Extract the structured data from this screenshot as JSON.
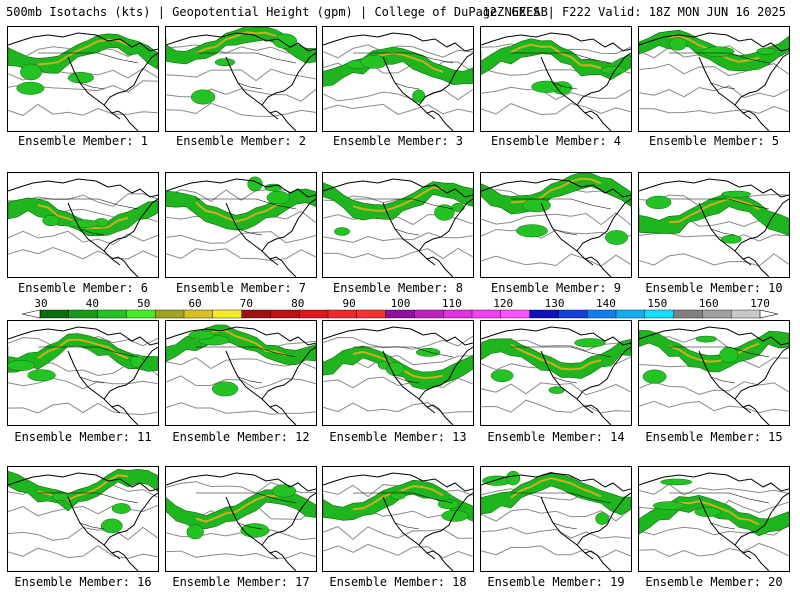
{
  "header": {
    "title_left": "500mb Isotachs (kts) | Geopotential Height (gpm) | College of DuPage NEXLAB",
    "title_right": "12Z GEFS | F222 Valid: 18Z MON JUN 16 2025"
  },
  "panels": [
    {
      "label": "Ensemble Member: 1"
    },
    {
      "label": "Ensemble Member: 2"
    },
    {
      "label": "Ensemble Member: 3"
    },
    {
      "label": "Ensemble Member: 4"
    },
    {
      "label": "Ensemble Member: 5"
    },
    {
      "label": "Ensemble Member: 6"
    },
    {
      "label": "Ensemble Member: 7"
    },
    {
      "label": "Ensemble Member: 8"
    },
    {
      "label": "Ensemble Member: 9"
    },
    {
      "label": "Ensemble Member: 10"
    },
    {
      "label": "Ensemble Member: 11"
    },
    {
      "label": "Ensemble Member: 12"
    },
    {
      "label": "Ensemble Member: 13"
    },
    {
      "label": "Ensemble Member: 14"
    },
    {
      "label": "Ensemble Member: 15"
    },
    {
      "label": "Ensemble Member: 16"
    },
    {
      "label": "Ensemble Member: 17"
    },
    {
      "label": "Ensemble Member: 18"
    },
    {
      "label": "Ensemble Member: 19"
    },
    {
      "label": "Ensemble Member: 20"
    }
  ],
  "colorbar": {
    "labels": [
      "30",
      "40",
      "50",
      "60",
      "70",
      "80",
      "90",
      "100",
      "110",
      "120",
      "130",
      "140",
      "150",
      "160",
      "170"
    ],
    "colors": [
      "#0b6e0b",
      "#1a9a1a",
      "#22c322",
      "#44ee22",
      "#9ea320",
      "#d8c020",
      "#f4ec20",
      "#a01010",
      "#c01010",
      "#e01818",
      "#f02828",
      "#ff3030",
      "#9010a0",
      "#c020c0",
      "#e030e0",
      "#f040f0",
      "#ff50ff",
      "#1010c0",
      "#1040e0",
      "#1080f0",
      "#10b0f0",
      "#10e0ff",
      "#808080",
      "#a0a0a0",
      "#c8c8c8"
    ]
  }
}
